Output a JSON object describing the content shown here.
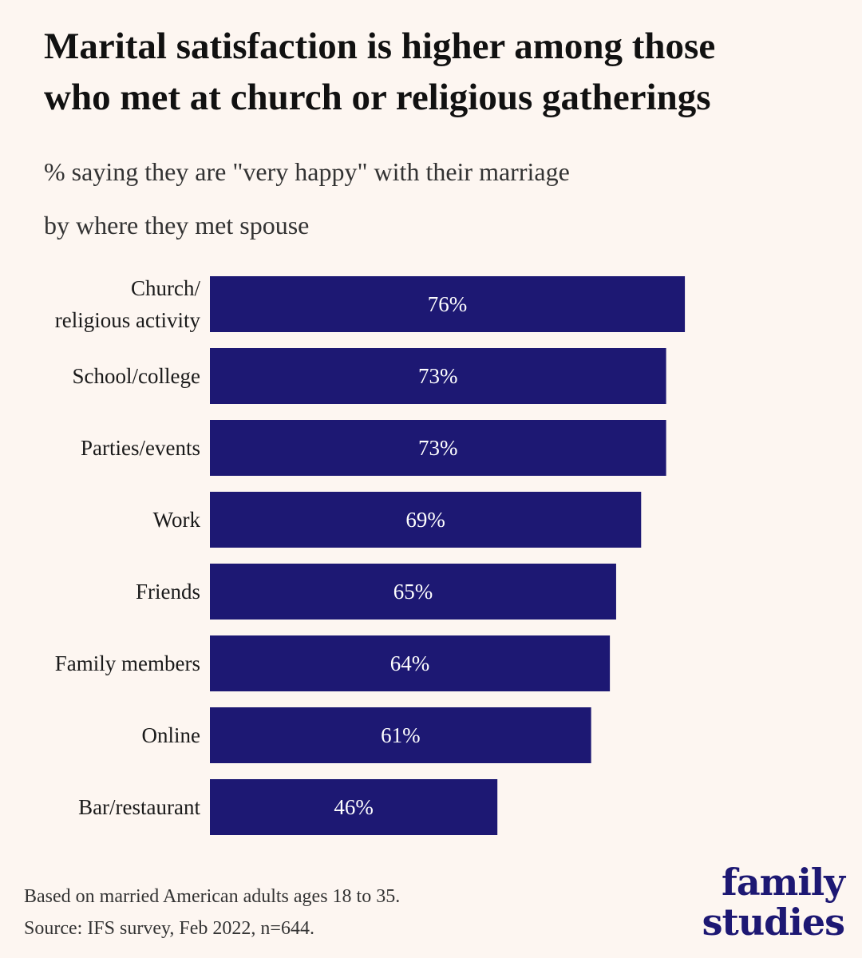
{
  "title_line1": "Marital satisfaction is higher among those",
  "title_line2": "who met at church or religious gatherings",
  "subtitle_line1": "% saying they are \"very happy\" with their marriage",
  "subtitle_line2": "by where they met spouse",
  "colors": {
    "background": "#fdf6f1",
    "bar": "#1d1873",
    "bar_label": "#ffffff",
    "logo": "#1d1873"
  },
  "chart_data": {
    "type": "bar",
    "orientation": "horizontal",
    "categories": [
      [
        "Church/",
        "religious activity"
      ],
      [
        "School/college"
      ],
      [
        "Parties/events"
      ],
      [
        "Work"
      ],
      [
        "Friends"
      ],
      [
        "Family members"
      ],
      [
        "Online"
      ],
      [
        "Bar/restaurant"
      ]
    ],
    "values": [
      76,
      73,
      73,
      69,
      65,
      64,
      61,
      46
    ],
    "value_labels": [
      "76%",
      "73%",
      "73%",
      "69%",
      "65%",
      "64%",
      "61%",
      "46%"
    ],
    "xlim": [
      0,
      100
    ],
    "grid": false,
    "legend": "none"
  },
  "footnote": {
    "line1": "Based on married American adults ages 18 to 35.",
    "line2": "Source: IFS survey, Feb 2022, n=644."
  },
  "logo": {
    "line1": "family",
    "line2": "studies"
  }
}
